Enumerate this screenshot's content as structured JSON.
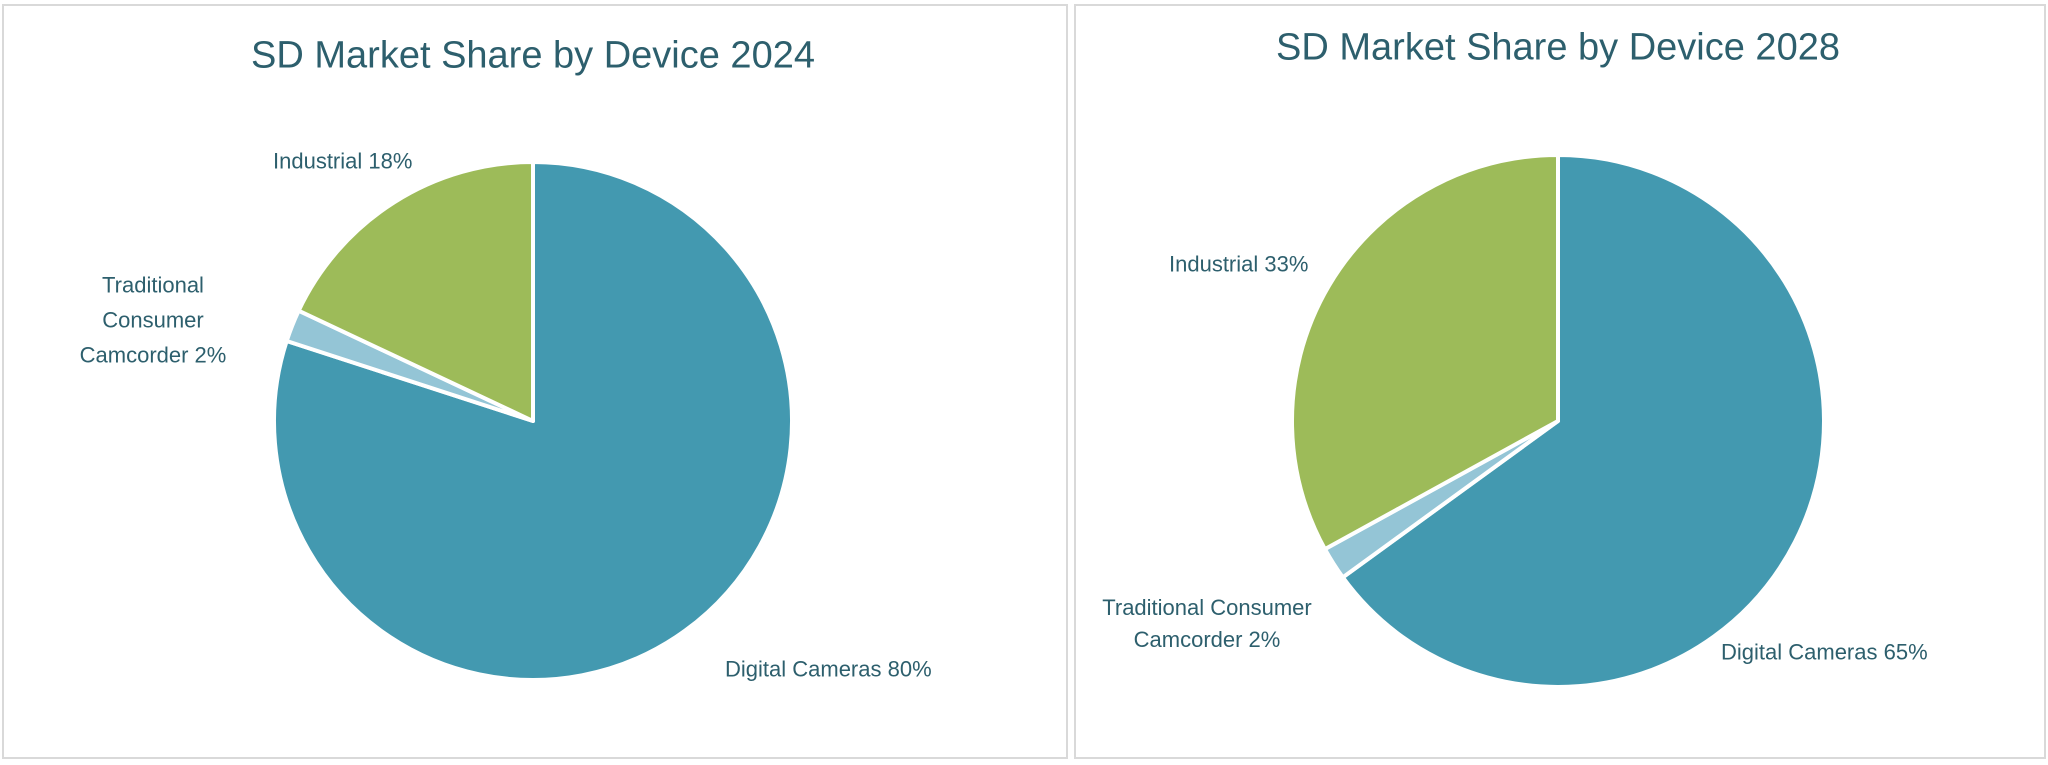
{
  "chart_data": [
    {
      "type": "pie",
      "title": "SD Market Share by Device 2024",
      "categories": [
        "Digital Cameras",
        "Traditional Consumer Camcorder",
        "Industrial"
      ],
      "values": [
        80,
        2,
        18
      ],
      "labels": [
        "Digital Cameras 80%",
        "Traditional Consumer Camcorder 2%",
        "Industrial 18%"
      ],
      "colors": [
        "#4399b0",
        "#94c5d6",
        "#9dbb59"
      ]
    },
    {
      "type": "pie",
      "title": "SD Market Share by Device 2028",
      "categories": [
        "Digital Cameras",
        "Traditional Consumer Camcorder",
        "Industrial"
      ],
      "values": [
        65,
        2,
        33
      ],
      "labels": [
        "Digital Cameras 65%",
        "Traditional Consumer Camcorder 2%",
        "Industrial 33%"
      ],
      "colors": [
        "#4399b0",
        "#94c5d6",
        "#9dbb59"
      ]
    }
  ],
  "label_lines": {
    "c0_trad": [
      "Traditional",
      "Consumer",
      "Camcorder 2%"
    ],
    "c1_trad": [
      "Traditional Consumer",
      "Camcorder 2%"
    ]
  }
}
